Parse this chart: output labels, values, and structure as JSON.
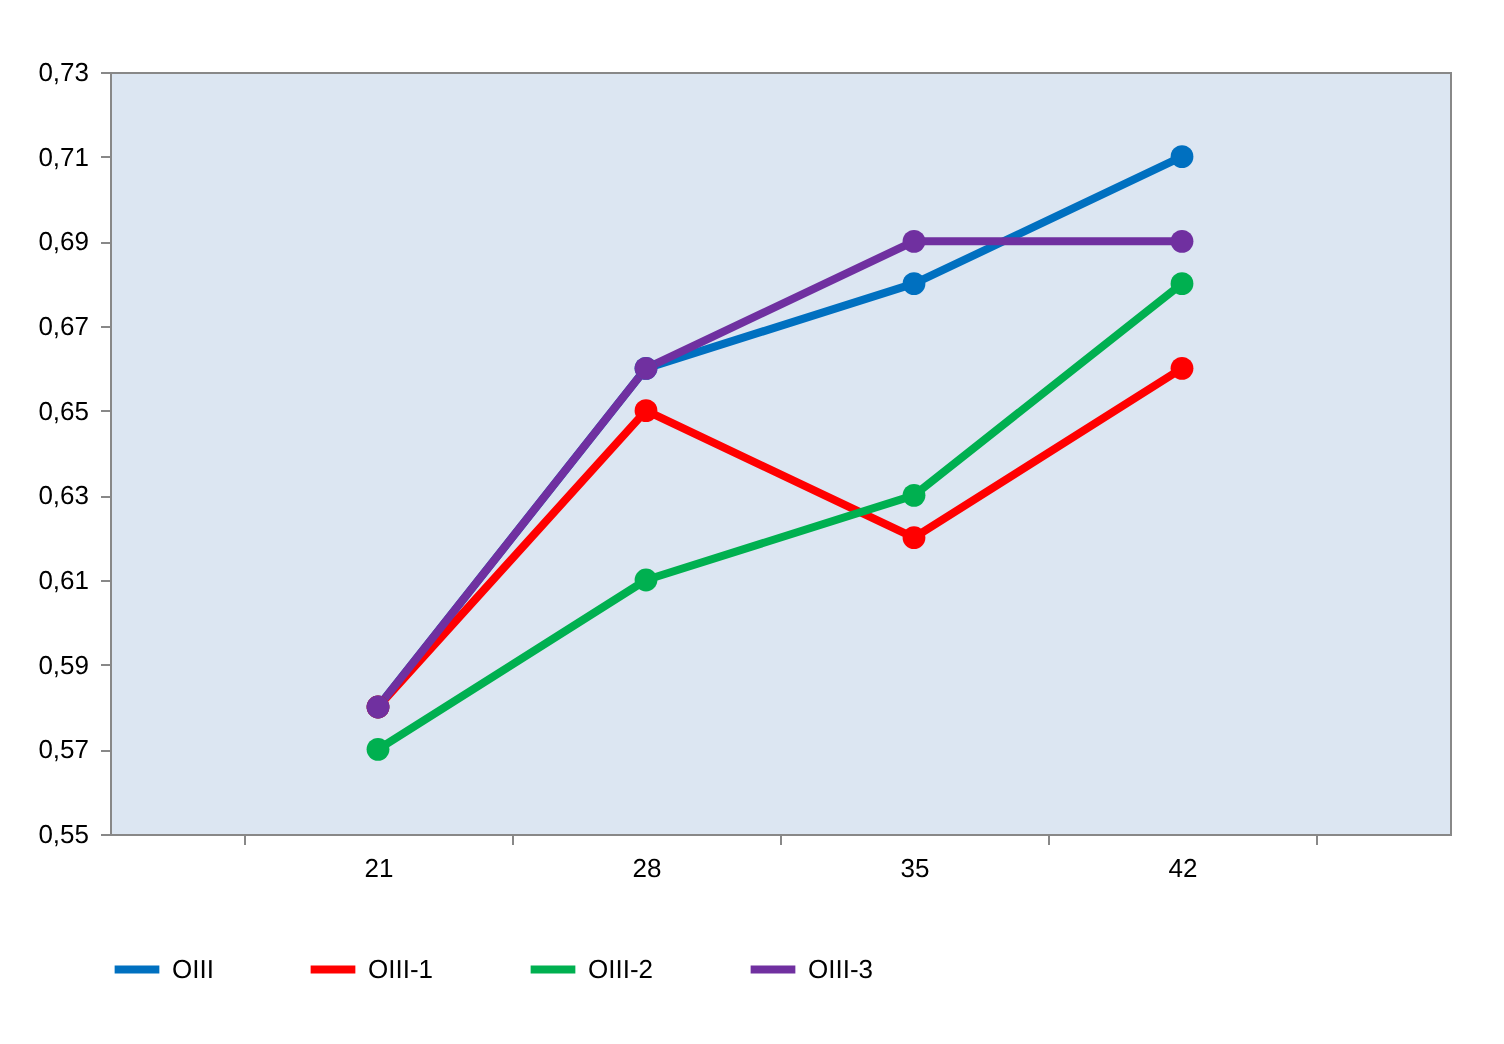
{
  "chart_data": {
    "type": "line",
    "categories": [
      "21",
      "28",
      "35",
      "42"
    ],
    "series": [
      {
        "name": "OIII",
        "color": "#0070c0",
        "values": [
          0.58,
          0.66,
          0.68,
          0.71
        ]
      },
      {
        "name": "OIII-1",
        "color": "#ff0000",
        "values": [
          0.58,
          0.65,
          0.62,
          0.66
        ]
      },
      {
        "name": "OIII-2",
        "color": "#00b050",
        "values": [
          0.57,
          0.61,
          0.63,
          0.68
        ]
      },
      {
        "name": "OIII-3",
        "color": "#7030a0",
        "values": [
          0.58,
          0.66,
          0.69,
          0.69
        ]
      }
    ],
    "ylim": [
      0.55,
      0.73
    ],
    "yticks": [
      {
        "value": 0.55,
        "label": "0,55"
      },
      {
        "value": 0.57,
        "label": "0,57"
      },
      {
        "value": 0.59,
        "label": "0,59"
      },
      {
        "value": 0.61,
        "label": "0,61"
      },
      {
        "value": 0.63,
        "label": "0,63"
      },
      {
        "value": 0.65,
        "label": "0,65"
      },
      {
        "value": 0.67,
        "label": "0,67"
      },
      {
        "value": 0.69,
        "label": "0,69"
      },
      {
        "value": 0.71,
        "label": "0,71"
      },
      {
        "value": 0.73,
        "label": "0,73"
      }
    ],
    "grid": false,
    "legend": "bottom",
    "marker": "circle",
    "line_style": "solid"
  }
}
